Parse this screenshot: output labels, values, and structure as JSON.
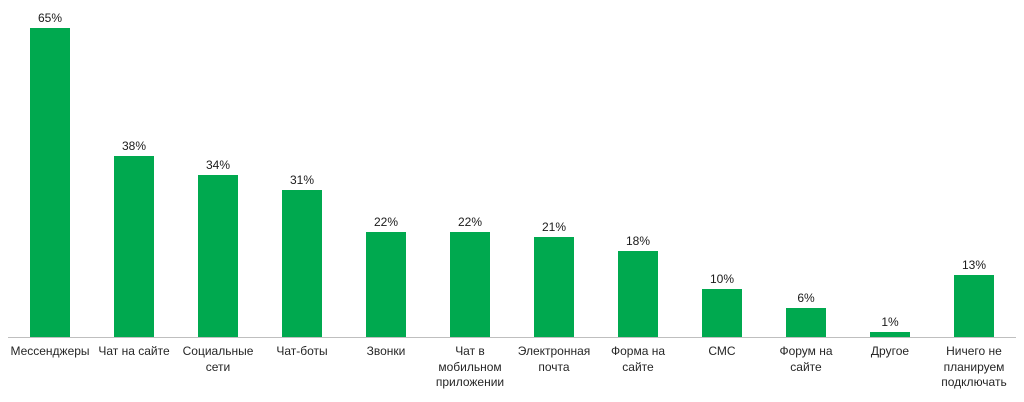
{
  "chart_data": {
    "type": "bar",
    "categories": [
      "Мессенджеры",
      "Чат на сайте",
      "Социальные сети",
      "Чат-боты",
      "Звонки",
      "Чат в мобильном приложении",
      "Электронная почта",
      "Форма на сайте",
      "СМС",
      "Форум на сайте",
      "Другое",
      "Ничего не планируем подключать"
    ],
    "values": [
      65,
      38,
      34,
      31,
      22,
      22,
      21,
      18,
      10,
      6,
      1,
      13
    ],
    "value_labels": [
      "65%",
      "38%",
      "34%",
      "31%",
      "22%",
      "22%",
      "21%",
      "18%",
      "10%",
      "6%",
      "1%",
      "13%"
    ],
    "title": "",
    "xlabel": "",
    "ylabel": "",
    "ylim": [
      0,
      65
    ],
    "grid": false,
    "legend": false,
    "bar_color": "#00a94f",
    "axis_color": "#bfbfbf",
    "label_color": "#1a1a1a"
  }
}
